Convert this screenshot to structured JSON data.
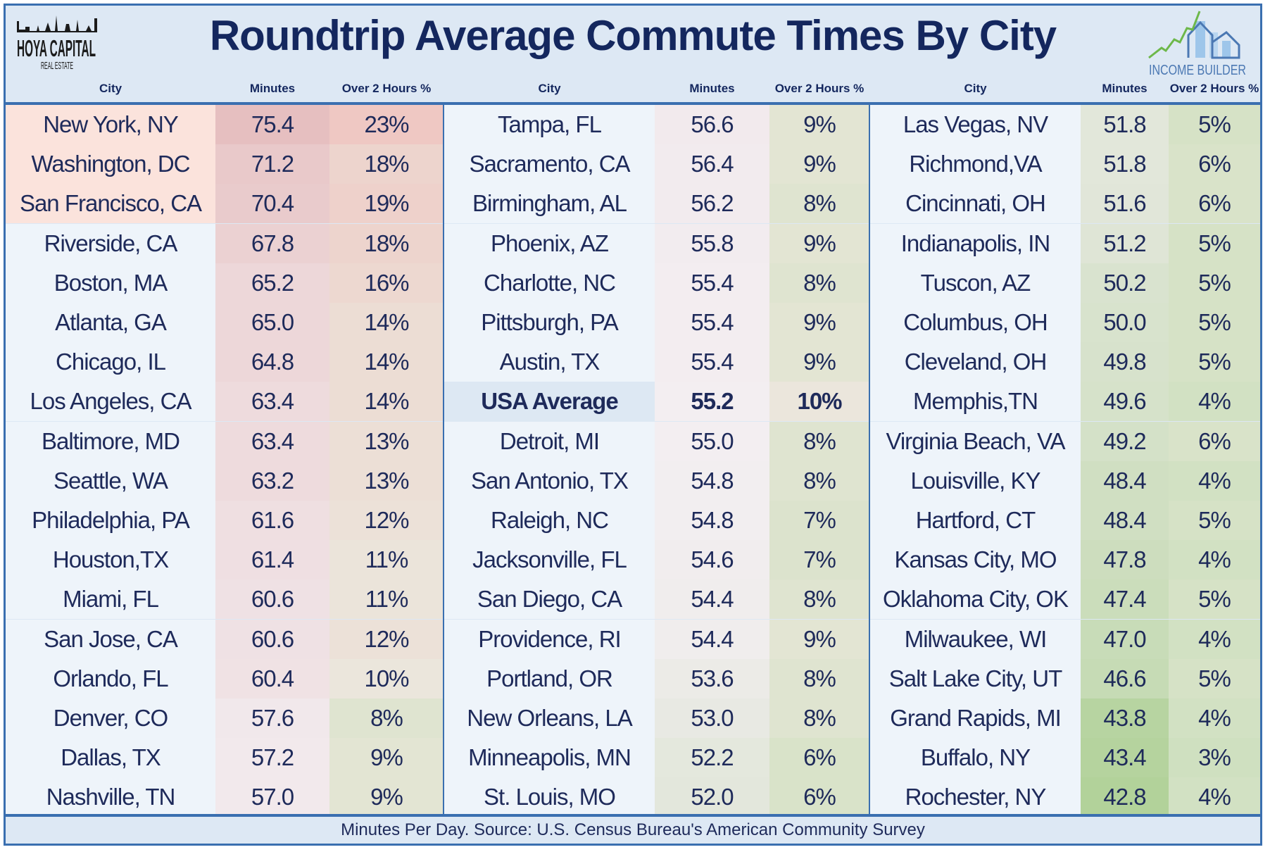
{
  "title": "Roundtrip Average Commute Times By City",
  "logos": {
    "left": "HOYA CAPITAL REAL ESTATE",
    "right": "INCOME BUILDER"
  },
  "column_headers": {
    "city": "City",
    "minutes": "Minutes",
    "pct": "Over 2 Hours %"
  },
  "footer": "Minutes Per Day. Source: U.S. Census Bureau's American Community Survey",
  "colors": {
    "border": "#3a6fb0",
    "text": "#1e2a5a",
    "high": "#e6bfc0",
    "mid": "#f3eef1",
    "low": "#b2d29a",
    "top_city_bg": "#fbe3dc",
    "city_bg": "#eef4fa",
    "highlight_bg": "#dde8f3"
  },
  "chart_data": {
    "type": "table",
    "title": "Roundtrip Average Commute Times By City",
    "columns": [
      "City",
      "Minutes",
      "Over 2 Hours %"
    ],
    "groups": [
      [
        {
          "city": "New York, NY",
          "minutes": "75.4",
          "pct": "23%"
        },
        {
          "city": "Washington, DC",
          "minutes": "71.2",
          "pct": "18%"
        },
        {
          "city": "San Francisco, CA",
          "minutes": "70.4",
          "pct": "19%"
        },
        {
          "city": "Riverside, CA",
          "minutes": "67.8",
          "pct": "18%"
        },
        {
          "city": "Boston, MA",
          "minutes": "65.2",
          "pct": "16%"
        },
        {
          "city": "Atlanta, GA",
          "minutes": "65.0",
          "pct": "14%"
        },
        {
          "city": "Chicago, IL",
          "minutes": "64.8",
          "pct": "14%"
        },
        {
          "city": "Los Angeles, CA",
          "minutes": "63.4",
          "pct": "14%"
        },
        {
          "city": "Baltimore, MD",
          "minutes": "63.4",
          "pct": "13%"
        },
        {
          "city": "Seattle, WA",
          "minutes": "63.2",
          "pct": "13%"
        },
        {
          "city": "Philadelphia, PA",
          "minutes": "61.6",
          "pct": "12%"
        },
        {
          "city": "Houston,TX",
          "minutes": "61.4",
          "pct": "11%"
        },
        {
          "city": "Miami, FL",
          "minutes": "60.6",
          "pct": "11%"
        },
        {
          "city": "San Jose, CA",
          "minutes": "60.6",
          "pct": "12%"
        },
        {
          "city": "Orlando, FL",
          "minutes": "60.4",
          "pct": "10%"
        },
        {
          "city": "Denver, CO",
          "minutes": "57.6",
          "pct": "8%"
        },
        {
          "city": "Dallas, TX",
          "minutes": "57.2",
          "pct": "9%"
        },
        {
          "city": "Nashville, TN",
          "minutes": "57.0",
          "pct": "9%"
        }
      ],
      [
        {
          "city": "Tampa, FL",
          "minutes": "56.6",
          "pct": "9%"
        },
        {
          "city": "Sacramento, CA",
          "minutes": "56.4",
          "pct": "9%"
        },
        {
          "city": "Birmingham, AL",
          "minutes": "56.2",
          "pct": "8%"
        },
        {
          "city": "Phoenix, AZ",
          "minutes": "55.8",
          "pct": "9%"
        },
        {
          "city": "Charlotte, NC",
          "minutes": "55.4",
          "pct": "8%"
        },
        {
          "city": "Pittsburgh, PA",
          "minutes": "55.4",
          "pct": "9%"
        },
        {
          "city": "Austin, TX",
          "minutes": "55.4",
          "pct": "9%"
        },
        {
          "city": "USA Average",
          "minutes": "55.2",
          "pct": "10%",
          "highlight": true
        },
        {
          "city": "Detroit, MI",
          "minutes": "55.0",
          "pct": "8%"
        },
        {
          "city": "San Antonio, TX",
          "minutes": "54.8",
          "pct": "8%"
        },
        {
          "city": "Raleigh, NC",
          "minutes": "54.8",
          "pct": "7%"
        },
        {
          "city": "Jacksonville, FL",
          "minutes": "54.6",
          "pct": "7%"
        },
        {
          "city": "San Diego, CA",
          "minutes": "54.4",
          "pct": "8%"
        },
        {
          "city": "Providence, RI",
          "minutes": "54.4",
          "pct": "9%"
        },
        {
          "city": "Portland, OR",
          "minutes": "53.6",
          "pct": "8%"
        },
        {
          "city": "New Orleans, LA",
          "minutes": "53.0",
          "pct": "8%"
        },
        {
          "city": "Minneapolis, MN",
          "minutes": "52.2",
          "pct": "6%"
        },
        {
          "city": "St. Louis, MO",
          "minutes": "52.0",
          "pct": "6%"
        }
      ],
      [
        {
          "city": "Las Vegas, NV",
          "minutes": "51.8",
          "pct": "5%"
        },
        {
          "city": "Richmond,VA",
          "minutes": "51.8",
          "pct": "6%"
        },
        {
          "city": "Cincinnati, OH",
          "minutes": "51.6",
          "pct": "6%"
        },
        {
          "city": "Indianapolis, IN",
          "minutes": "51.2",
          "pct": "5%"
        },
        {
          "city": "Tuscon, AZ",
          "minutes": "50.2",
          "pct": "5%"
        },
        {
          "city": "Columbus, OH",
          "minutes": "50.0",
          "pct": "5%"
        },
        {
          "city": "Cleveland, OH",
          "minutes": "49.8",
          "pct": "5%"
        },
        {
          "city": "Memphis,TN",
          "minutes": "49.6",
          "pct": "4%"
        },
        {
          "city": "Virginia Beach, VA",
          "minutes": "49.2",
          "pct": "6%"
        },
        {
          "city": "Louisville, KY",
          "minutes": "48.4",
          "pct": "4%"
        },
        {
          "city": "Hartford, CT",
          "minutes": "48.4",
          "pct": "5%"
        },
        {
          "city": "Kansas City, MO",
          "minutes": "47.8",
          "pct": "4%"
        },
        {
          "city": "Oklahoma City, OK",
          "minutes": "47.4",
          "pct": "5%"
        },
        {
          "city": "Milwaukee, WI",
          "minutes": "47.0",
          "pct": "4%"
        },
        {
          "city": "Salt Lake City, UT",
          "minutes": "46.6",
          "pct": "5%"
        },
        {
          "city": "Grand Rapids, MI",
          "minutes": "43.8",
          "pct": "4%"
        },
        {
          "city": "Buffalo, NY",
          "minutes": "43.4",
          "pct": "3%"
        },
        {
          "city": "Rochester, NY",
          "minutes": "42.8",
          "pct": "4%"
        }
      ]
    ]
  }
}
